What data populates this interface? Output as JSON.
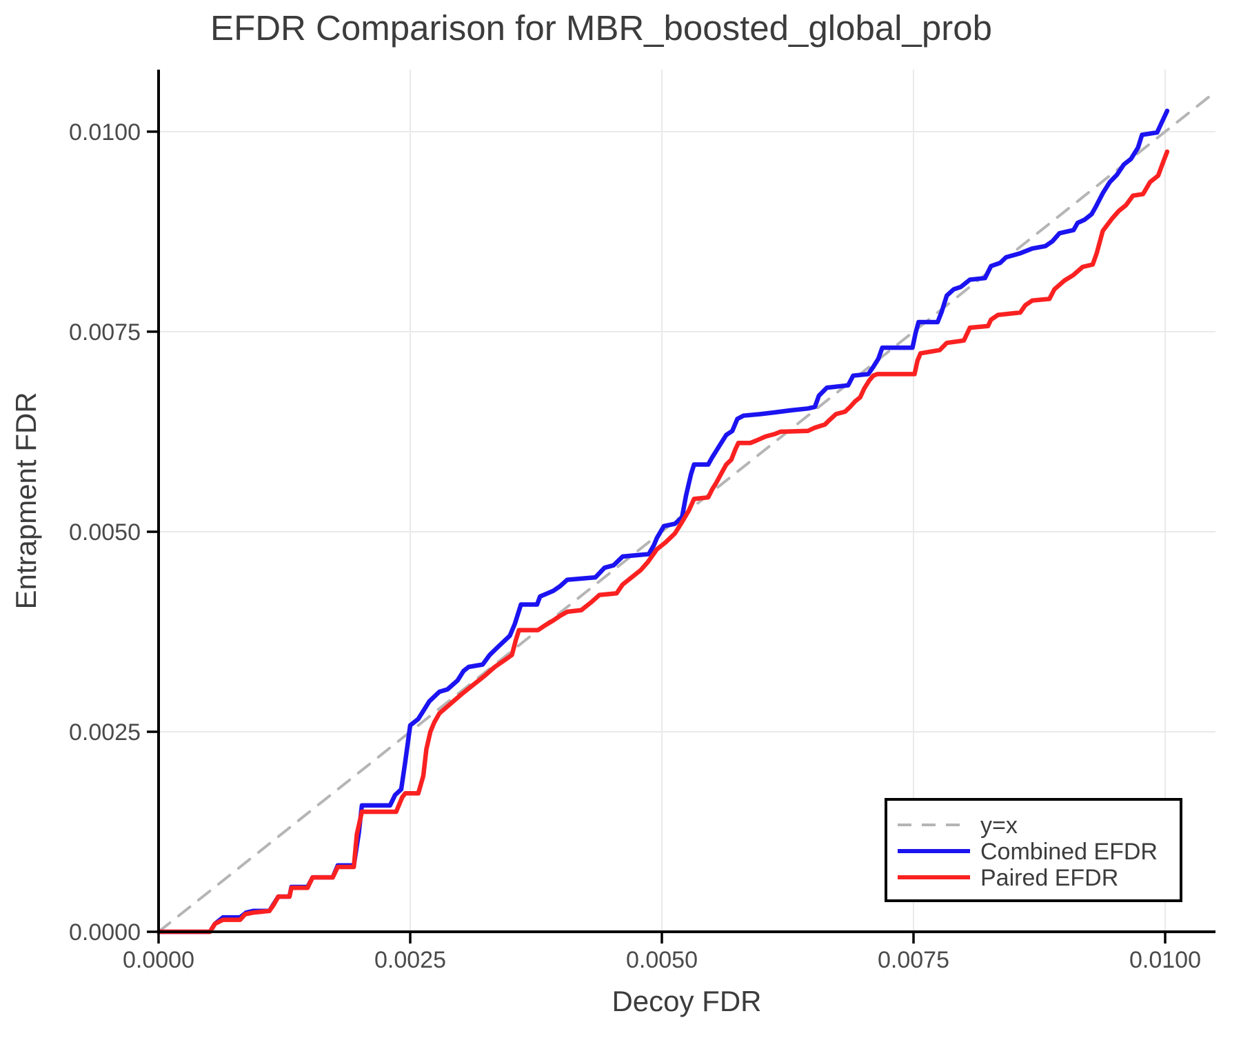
{
  "figure": {
    "background": "#ffffff",
    "spine_color": "#000000",
    "grid_color": "#e9e9e9",
    "text_color": "#3c3c3c",
    "tick_text_color": "#4a4a4a"
  },
  "legend": {
    "entries": [
      "y=x",
      "Combined EFDR",
      "Paired EFDR"
    ],
    "border_color": "#000000",
    "background": "#ffffff"
  },
  "chart_data": {
    "type": "line",
    "title": "EFDR Comparison for MBR_boosted_global_prob",
    "xlabel": "Decoy FDR",
    "ylabel": "Entrapment FDR",
    "xlim": [
      0,
      0.0105
    ],
    "ylim": [
      0,
      0.010775
    ],
    "grid": true,
    "legend_position": "lower right",
    "xticks": {
      "values": [
        0,
        0.0025,
        0.005,
        0.0075,
        0.01
      ],
      "labels": [
        "0.0000",
        "0.0025",
        "0.0050",
        "0.0075",
        "0.0100"
      ]
    },
    "yticks": {
      "values": [
        0,
        0.0025,
        0.005,
        0.0075,
        0.01
      ],
      "labels": [
        "0.0000",
        "0.0025",
        "0.0050",
        "0.0075",
        "0.0100"
      ]
    },
    "series": [
      {
        "name": "y=x",
        "style": "dashed",
        "color": "#b5b5b5",
        "width": 4,
        "points": [
          [
            0,
            0
          ],
          [
            0.0105,
            0.0105
          ]
        ]
      },
      {
        "name": "Combined EFDR",
        "style": "solid",
        "color": "#1b13f0",
        "width": 6.5,
        "points": [
          [
            0,
            0
          ],
          [
            0.00051,
            0
          ],
          [
            0.00056,
            0.0001
          ],
          [
            0.00064,
            0.00018
          ],
          [
            0.00081,
            0.00018
          ],
          [
            0.00087,
            0.00024
          ],
          [
            0.00094,
            0.00026
          ],
          [
            0.0011,
            0.00026
          ],
          [
            0.00114,
            0.00034
          ],
          [
            0.00119,
            0.00044
          ],
          [
            0.0013,
            0.00044
          ],
          [
            0.00132,
            0.00056
          ],
          [
            0.00148,
            0.00056
          ],
          [
            0.00153,
            0.00068
          ],
          [
            0.00173,
            0.00068
          ],
          [
            0.00178,
            0.00083
          ],
          [
            0.00194,
            0.00083
          ],
          [
            0.00199,
            0.00124
          ],
          [
            0.00202,
            0.00158
          ],
          [
            0.0023,
            0.00158
          ],
          [
            0.00235,
            0.00171
          ],
          [
            0.00241,
            0.00178
          ],
          [
            0.00245,
            0.00212
          ],
          [
            0.0025,
            0.00258
          ],
          [
            0.00258,
            0.00266
          ],
          [
            0.00269,
            0.00288
          ],
          [
            0.00279,
            0.003
          ],
          [
            0.00287,
            0.00303
          ],
          [
            0.00297,
            0.00314
          ],
          [
            0.00303,
            0.00326
          ],
          [
            0.00308,
            0.00331
          ],
          [
            0.00322,
            0.00334
          ],
          [
            0.00329,
            0.00346
          ],
          [
            0.00338,
            0.00357
          ],
          [
            0.00349,
            0.0037
          ],
          [
            0.00354,
            0.00385
          ],
          [
            0.0036,
            0.00409
          ],
          [
            0.00376,
            0.00409
          ],
          [
            0.00379,
            0.00419
          ],
          [
            0.00392,
            0.00426
          ],
          [
            0.00399,
            0.00432
          ],
          [
            0.00406,
            0.0044
          ],
          [
            0.00434,
            0.00443
          ],
          [
            0.00443,
            0.00455
          ],
          [
            0.00452,
            0.00458
          ],
          [
            0.00461,
            0.00469
          ],
          [
            0.00487,
            0.00472
          ],
          [
            0.00492,
            0.00483
          ],
          [
            0.00495,
            0.00492
          ],
          [
            0.00502,
            0.00507
          ],
          [
            0.00513,
            0.0051
          ],
          [
            0.0052,
            0.00518
          ],
          [
            0.00524,
            0.00545
          ],
          [
            0.00529,
            0.00572
          ],
          [
            0.00532,
            0.00584
          ],
          [
            0.00546,
            0.00584
          ],
          [
            0.0055,
            0.00593
          ],
          [
            0.00557,
            0.00607
          ],
          [
            0.00564,
            0.00621
          ],
          [
            0.0057,
            0.00626
          ],
          [
            0.00575,
            0.00641
          ],
          [
            0.00581,
            0.00645
          ],
          [
            0.00598,
            0.00647
          ],
          [
            0.00611,
            0.00649
          ],
          [
            0.0063,
            0.00652
          ],
          [
            0.00645,
            0.00654
          ],
          [
            0.00652,
            0.00656
          ],
          [
            0.00656,
            0.0067
          ],
          [
            0.00664,
            0.0068
          ],
          [
            0.00685,
            0.00683
          ],
          [
            0.0069,
            0.00695
          ],
          [
            0.00705,
            0.00697
          ],
          [
            0.0071,
            0.00706
          ],
          [
            0.00715,
            0.00716
          ],
          [
            0.00719,
            0.0073
          ],
          [
            0.00749,
            0.0073
          ],
          [
            0.00752,
            0.00748
          ],
          [
            0.00755,
            0.00762
          ],
          [
            0.00774,
            0.00762
          ],
          [
            0.00778,
            0.00775
          ],
          [
            0.00783,
            0.00795
          ],
          [
            0.0079,
            0.00803
          ],
          [
            0.00797,
            0.00806
          ],
          [
            0.00806,
            0.00815
          ],
          [
            0.00821,
            0.00817
          ],
          [
            0.00827,
            0.00832
          ],
          [
            0.00836,
            0.00836
          ],
          [
            0.00842,
            0.00843
          ],
          [
            0.00856,
            0.00848
          ],
          [
            0.00868,
            0.00854
          ],
          [
            0.00881,
            0.00857
          ],
          [
            0.00888,
            0.00863
          ],
          [
            0.00895,
            0.00873
          ],
          [
            0.00909,
            0.00877
          ],
          [
            0.00913,
            0.00886
          ],
          [
            0.0092,
            0.0089
          ],
          [
            0.00927,
            0.00897
          ],
          [
            0.00931,
            0.00906
          ],
          [
            0.00938,
            0.00923
          ],
          [
            0.00945,
            0.00937
          ],
          [
            0.00952,
            0.00946
          ],
          [
            0.00959,
            0.00959
          ],
          [
            0.00966,
            0.00966
          ],
          [
            0.00973,
            0.0098
          ],
          [
            0.00977,
            0.00996
          ],
          [
            0.00992,
            0.00999
          ],
          [
            0.00996,
            0.0101
          ],
          [
            0.01002,
            0.01026
          ]
        ]
      },
      {
        "name": "Paired EFDR",
        "style": "solid",
        "color": "#fa2121",
        "width": 6.5,
        "points": [
          [
            0,
            0
          ],
          [
            0.00051,
            0
          ],
          [
            0.00056,
            0.0001
          ],
          [
            0.00064,
            0.00015
          ],
          [
            0.00081,
            0.00015
          ],
          [
            0.00086,
            0.00022
          ],
          [
            0.00094,
            0.00024
          ],
          [
            0.0011,
            0.00026
          ],
          [
            0.00114,
            0.00033
          ],
          [
            0.00119,
            0.00044
          ],
          [
            0.0013,
            0.00044
          ],
          [
            0.00132,
            0.00055
          ],
          [
            0.00148,
            0.00055
          ],
          [
            0.00153,
            0.00068
          ],
          [
            0.00173,
            0.00068
          ],
          [
            0.00178,
            0.00081
          ],
          [
            0.00194,
            0.00081
          ],
          [
            0.00197,
            0.00122
          ],
          [
            0.00202,
            0.0015
          ],
          [
            0.00236,
            0.0015
          ],
          [
            0.00242,
            0.00168
          ],
          [
            0.00245,
            0.00173
          ],
          [
            0.00258,
            0.00173
          ],
          [
            0.00263,
            0.00195
          ],
          [
            0.00266,
            0.00228
          ],
          [
            0.0027,
            0.0025
          ],
          [
            0.00274,
            0.00262
          ],
          [
            0.00279,
            0.00273
          ],
          [
            0.0029,
            0.00285
          ],
          [
            0.00301,
            0.00297
          ],
          [
            0.00308,
            0.00304
          ],
          [
            0.00315,
            0.00311
          ],
          [
            0.00324,
            0.0032
          ],
          [
            0.00334,
            0.00331
          ],
          [
            0.00342,
            0.00338
          ],
          [
            0.00351,
            0.00346
          ],
          [
            0.00355,
            0.00365
          ],
          [
            0.00358,
            0.00377
          ],
          [
            0.00377,
            0.00377
          ],
          [
            0.00384,
            0.00383
          ],
          [
            0.00392,
            0.00389
          ],
          [
            0.00399,
            0.00395
          ],
          [
            0.00406,
            0.004
          ],
          [
            0.0042,
            0.00402
          ],
          [
            0.0043,
            0.00412
          ],
          [
            0.00438,
            0.00421
          ],
          [
            0.00455,
            0.00423
          ],
          [
            0.00461,
            0.00434
          ],
          [
            0.0047,
            0.00443
          ],
          [
            0.00479,
            0.00452
          ],
          [
            0.00486,
            0.00462
          ],
          [
            0.00495,
            0.00478
          ],
          [
            0.00504,
            0.00487
          ],
          [
            0.00513,
            0.00498
          ],
          [
            0.0052,
            0.00512
          ],
          [
            0.00527,
            0.00527
          ],
          [
            0.00532,
            0.00541
          ],
          [
            0.00546,
            0.00543
          ],
          [
            0.0055,
            0.00553
          ],
          [
            0.00554,
            0.00561
          ],
          [
            0.0056,
            0.00575
          ],
          [
            0.00564,
            0.00584
          ],
          [
            0.00569,
            0.0059
          ],
          [
            0.00573,
            0.00603
          ],
          [
            0.00576,
            0.00611
          ],
          [
            0.00588,
            0.00611
          ],
          [
            0.00594,
            0.00614
          ],
          [
            0.00603,
            0.00619
          ],
          [
            0.00612,
            0.00622
          ],
          [
            0.00618,
            0.00625
          ],
          [
            0.00645,
            0.00626
          ],
          [
            0.00652,
            0.0063
          ],
          [
            0.00662,
            0.00634
          ],
          [
            0.00666,
            0.00639
          ],
          [
            0.00673,
            0.00647
          ],
          [
            0.00682,
            0.0065
          ],
          [
            0.00687,
            0.00656
          ],
          [
            0.00692,
            0.00663
          ],
          [
            0.00697,
            0.00668
          ],
          [
            0.00701,
            0.00679
          ],
          [
            0.00706,
            0.00689
          ],
          [
            0.0071,
            0.00695
          ],
          [
            0.00714,
            0.00697
          ],
          [
            0.00751,
            0.00697
          ],
          [
            0.00754,
            0.00714
          ],
          [
            0.00757,
            0.00723
          ],
          [
            0.00776,
            0.00727
          ],
          [
            0.00783,
            0.00736
          ],
          [
            0.008,
            0.00739
          ],
          [
            0.00806,
            0.00755
          ],
          [
            0.00824,
            0.00757
          ],
          [
            0.00827,
            0.00765
          ],
          [
            0.00834,
            0.00771
          ],
          [
            0.00856,
            0.00774
          ],
          [
            0.00861,
            0.00783
          ],
          [
            0.00868,
            0.00789
          ],
          [
            0.00885,
            0.00791
          ],
          [
            0.0089,
            0.00803
          ],
          [
            0.009,
            0.00814
          ],
          [
            0.00909,
            0.00821
          ],
          [
            0.00918,
            0.00831
          ],
          [
            0.00928,
            0.00834
          ],
          [
            0.00932,
            0.00848
          ],
          [
            0.00938,
            0.00876
          ],
          [
            0.00947,
            0.00891
          ],
          [
            0.00954,
            0.00901
          ],
          [
            0.00961,
            0.00908
          ],
          [
            0.00968,
            0.0092
          ],
          [
            0.00978,
            0.00922
          ],
          [
            0.00985,
            0.00937
          ],
          [
            0.00993,
            0.00945
          ],
          [
            0.00998,
            0.00962
          ],
          [
            0.01002,
            0.00975
          ]
        ]
      }
    ]
  }
}
